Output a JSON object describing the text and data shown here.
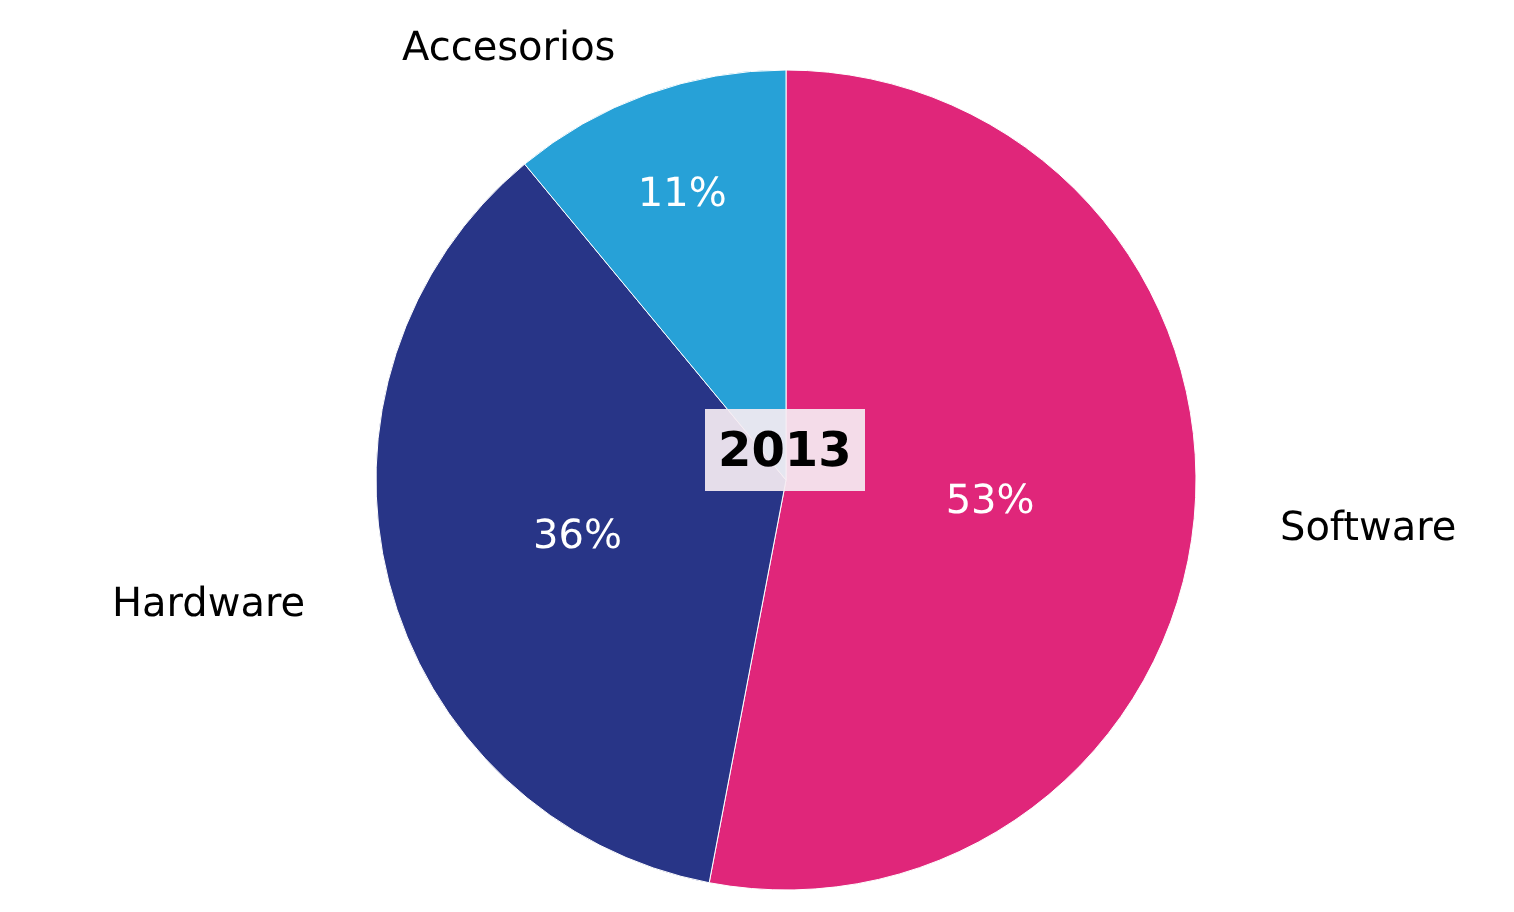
{
  "chart_data": {
    "type": "pie",
    "title": "2013",
    "categories": [
      "Software",
      "Hardware",
      "Accesorios"
    ],
    "values": [
      53,
      36,
      11
    ],
    "value_labels": [
      "53%",
      "36%",
      "11%"
    ],
    "colors": [
      "#e0267a",
      "#283587",
      "#27a1d7"
    ],
    "legend": false
  }
}
